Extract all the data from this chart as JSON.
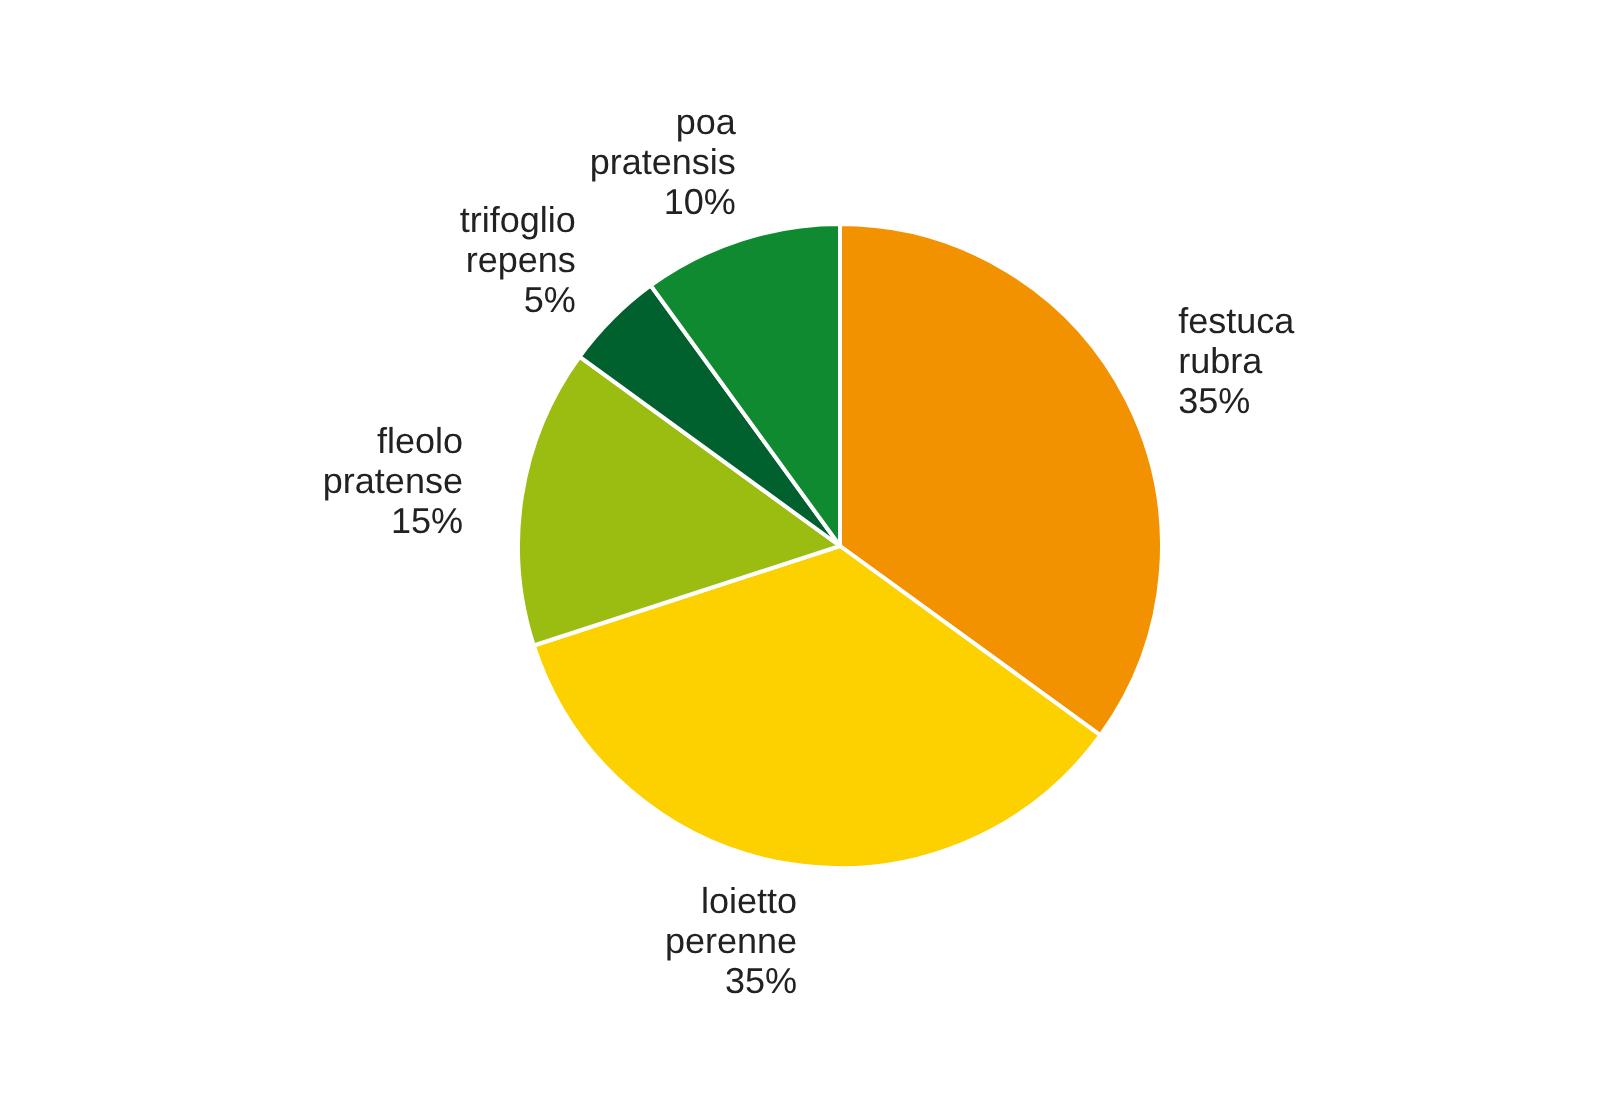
{
  "chart_data": {
    "type": "pie",
    "categories": [
      "festuca rubra",
      "loietto perenne",
      "fleolo pratense",
      "trifoglio repens",
      "poa pratensis"
    ],
    "values": [
      35,
      35,
      15,
      5,
      10
    ],
    "value_labels": [
      "35%",
      "35%",
      "15%",
      "5%",
      "10%"
    ],
    "colors": [
      "#f39200",
      "#fdd000",
      "#9bbd12",
      "#00602e",
      "#0f8a30"
    ],
    "legend": false
  }
}
